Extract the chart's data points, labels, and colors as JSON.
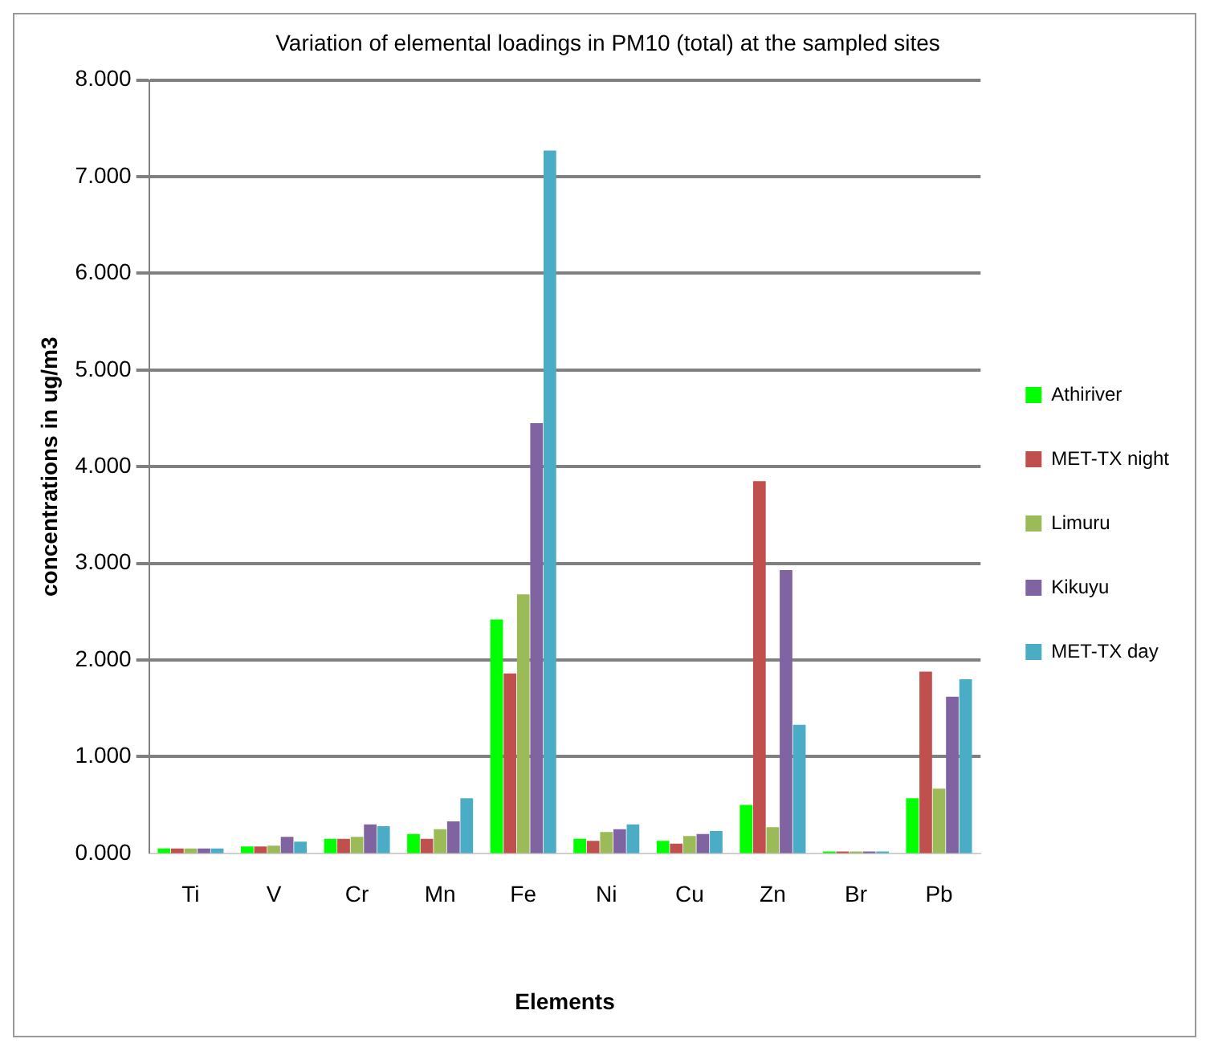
{
  "chart_data": {
    "type": "bar",
    "title": "Variation of elemental loadings in PM10 (total) at the sampled sites",
    "xlabel": "Elements",
    "ylabel": "concentrations in ug/m3",
    "categories": [
      "Ti",
      "V",
      "Cr",
      "Mn",
      "Fe",
      "Ni",
      "Cu",
      "Zn",
      "Br",
      "Pb"
    ],
    "series": [
      {
        "name": "Athiriver",
        "color": "#00ff00",
        "values": [
          0.05,
          0.07,
          0.15,
          0.2,
          2.42,
          0.15,
          0.13,
          0.5,
          0.02,
          0.57
        ]
      },
      {
        "name": "MET-TX night",
        "color": "#c0504d",
        "values": [
          0.05,
          0.07,
          0.15,
          0.15,
          1.86,
          0.13,
          0.1,
          3.85,
          0.02,
          1.88
        ]
      },
      {
        "name": "Limuru",
        "color": "#9bbb59",
        "values": [
          0.05,
          0.08,
          0.17,
          0.25,
          2.68,
          0.22,
          0.18,
          0.27,
          0.02,
          0.67
        ]
      },
      {
        "name": "Kikuyu",
        "color": "#8064a2",
        "values": [
          0.05,
          0.17,
          0.3,
          0.33,
          4.45,
          0.25,
          0.2,
          2.93,
          0.02,
          1.62
        ]
      },
      {
        "name": "MET-TX day",
        "color": "#4bacc6",
        "values": [
          0.05,
          0.12,
          0.28,
          0.57,
          7.27,
          0.3,
          0.23,
          1.33,
          0.02,
          1.8
        ]
      }
    ],
    "ylim": [
      0,
      8
    ],
    "yticks": [
      {
        "value": 0,
        "label": "0.000"
      },
      {
        "value": 1,
        "label": "1.000"
      },
      {
        "value": 2,
        "label": "2.000"
      },
      {
        "value": 3,
        "label": "3.000"
      },
      {
        "value": 4,
        "label": "4.000"
      },
      {
        "value": 5,
        "label": "5.000"
      },
      {
        "value": 6,
        "label": "6.000"
      },
      {
        "value": 7,
        "label": "7.000"
      },
      {
        "value": 8,
        "label": "8.000"
      }
    ],
    "grid": "y",
    "legend": "right"
  }
}
